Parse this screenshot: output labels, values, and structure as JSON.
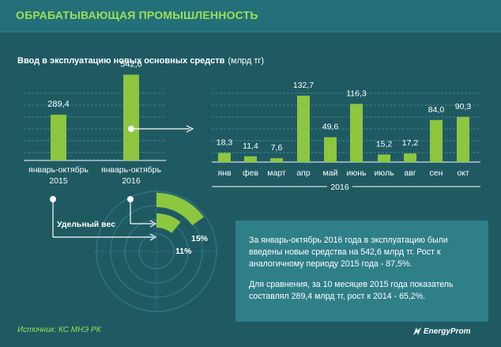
{
  "header": {
    "title": "ОБРАБАТЫВАЮЩАЯ ПРОМЫШЛЕННОСТЬ"
  },
  "chart_data": [
    {
      "type": "bar",
      "title": "Ввод в эксплуатацию новых основных средств",
      "units": "(млрд тг)",
      "categories": [
        [
          "январь-октябрь",
          "2015"
        ],
        [
          "январь-октябрь",
          "2016"
        ]
      ],
      "values": [
        289.4,
        542.6
      ],
      "labels": [
        "289,4",
        "542,6"
      ],
      "ylim": [
        0,
        600
      ]
    },
    {
      "type": "bar",
      "categories": [
        "янв",
        "фев",
        "март",
        "апр",
        "май",
        "июнь",
        "июль",
        "авг",
        "сен",
        "окт"
      ],
      "values": [
        18.3,
        11.4,
        7.6,
        132.7,
        49.6,
        116.3,
        15.2,
        17.2,
        84.0,
        90.3
      ],
      "labels": [
        "18,3",
        "11,4",
        "7,6",
        "132,7",
        "49,6",
        "116,3",
        "15,2",
        "17,2",
        "84,0",
        "90,3"
      ],
      "xlabel": "2016",
      "ylim": [
        0,
        150
      ]
    },
    {
      "type": "pie",
      "title": "Удельный вес",
      "slices": [
        {
          "value": 15,
          "label": "15%"
        },
        {
          "value": 11,
          "label": "11%"
        }
      ]
    }
  ],
  "textbox": {
    "p1": "За январь-октябрь 2016 года в эксплуатацию были введены новые средства на 542,6 млрд тг. Рост к аналогичному периоду 2015 года - 87,5%.",
    "p2": "Для сравнения, за 10 месяцев 2015 года показатель составлял 289,4 млрд тг, рост к 2014 - 65,2%."
  },
  "source": "Источник: КС МНЭ РК",
  "brand": "EnergyProm",
  "colors": {
    "bar": "#8dc63f",
    "accent_text": "#9ee055",
    "background": "#1f5a63",
    "box": "#2f7f89"
  }
}
